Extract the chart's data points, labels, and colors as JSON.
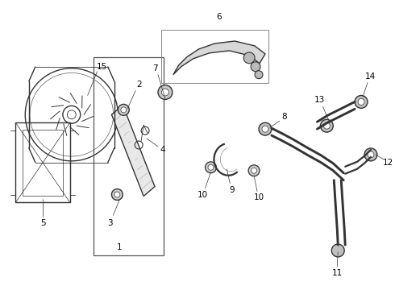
{
  "bg_color": "#ffffff",
  "line_color": "#333333",
  "label_color": "#000000",
  "fig_width": 4.9,
  "fig_height": 3.6,
  "dpi": 100
}
